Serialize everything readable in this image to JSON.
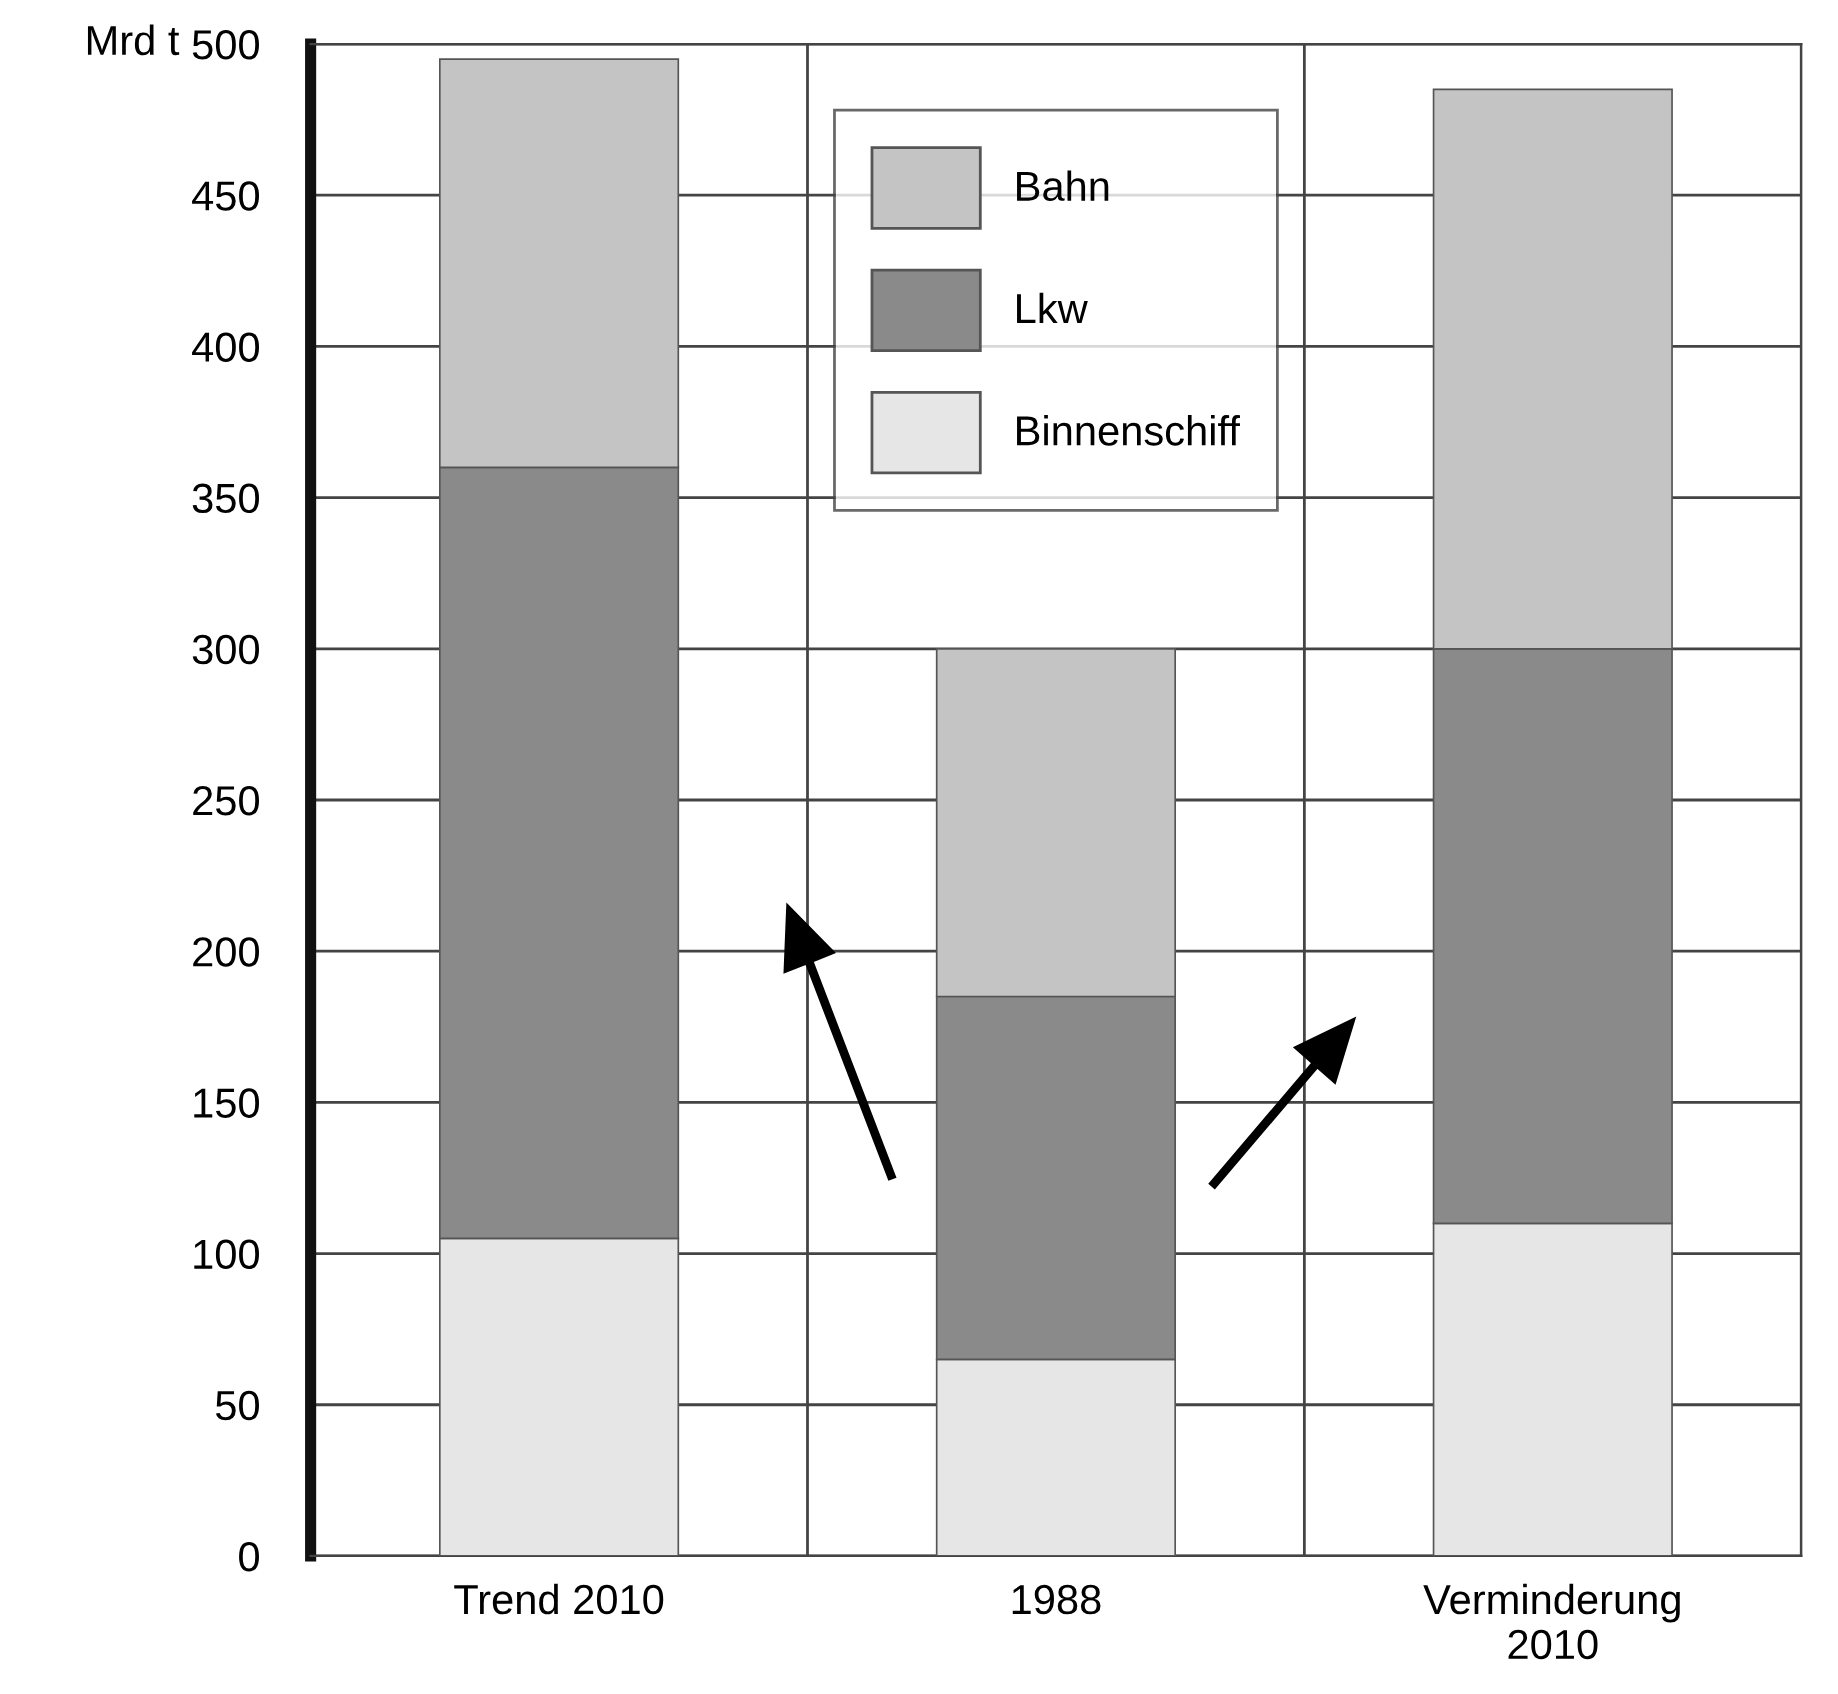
{
  "chart_data": {
    "type": "bar",
    "stacked": true,
    "ylabel": "Mrd t",
    "categories": [
      "Trend 2010",
      "1988",
      "Verminderung\n2010"
    ],
    "series": [
      {
        "name": "Binnenschiff",
        "color": "#e6e6e6",
        "values": [
          105,
          65,
          110
        ]
      },
      {
        "name": "Lkw",
        "color": "#8a8a8a",
        "values": [
          255,
          120,
          190
        ]
      },
      {
        "name": "Bahn",
        "color": "#c4c4c4",
        "values": [
          135,
          115,
          185
        ]
      }
    ],
    "ylim": [
      0,
      500
    ],
    "yticks": [
      0,
      50,
      100,
      150,
      200,
      250,
      300,
      350,
      400,
      450,
      500
    ],
    "grid": true,
    "legend": "top"
  }
}
